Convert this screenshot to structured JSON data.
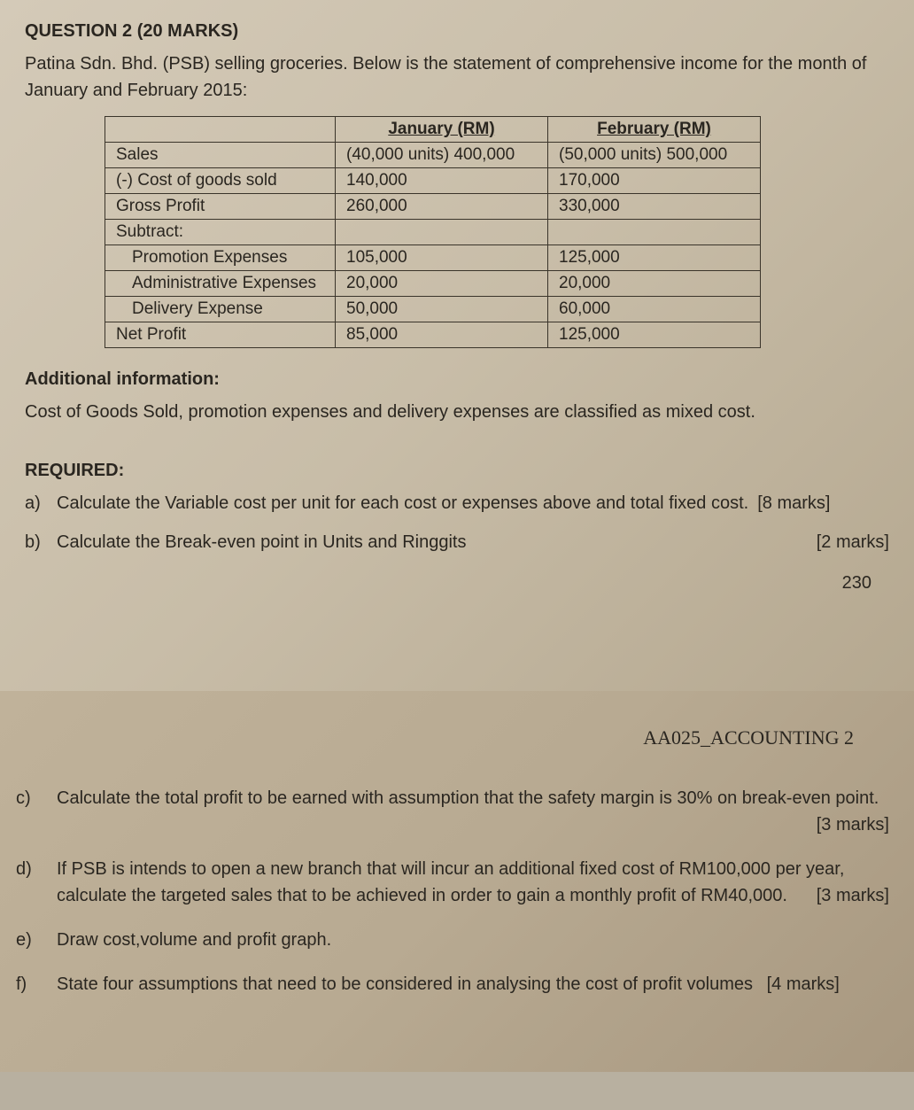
{
  "question_title": "QUESTION 2 (20 MARKS)",
  "intro": "Patina Sdn. Bhd. (PSB) selling groceries.  Below is the statement of comprehensive income for the month of January and February 2015:",
  "table": {
    "columns": [
      "",
      "January (RM)",
      "February (RM)"
    ],
    "rows": [
      {
        "label": "Sales",
        "jan": "(40,000 units) 400,000",
        "feb": "(50,000 units) 500,000",
        "indent": false
      },
      {
        "label": "(-) Cost of goods sold",
        "jan": "140,000",
        "feb": "170,000",
        "indent": false
      },
      {
        "label": "Gross Profit",
        "jan": "260,000",
        "feb": "330,000",
        "indent": false
      },
      {
        "label": "Subtract:",
        "jan": "",
        "feb": "",
        "indent": false
      },
      {
        "label": "Promotion Expenses",
        "jan": "105,000",
        "feb": "125,000",
        "indent": true
      },
      {
        "label": "Administrative Expenses",
        "jan": "20,000",
        "feb": "20,000",
        "indent": true
      },
      {
        "label": "Delivery Expense",
        "jan": "50,000",
        "feb": "60,000",
        "indent": true
      },
      {
        "label": "Net Profit",
        "jan": "85,000",
        "feb": "125,000",
        "indent": false
      }
    ],
    "border_color": "#3a342a",
    "font_size": 19
  },
  "additional_title": "Additional information:",
  "additional_text": "Cost of Goods Sold, promotion expenses and delivery expenses are classified as mixed cost.",
  "required_title": "REQUIRED:",
  "req_a": {
    "letter": "a)",
    "text": "Calculate the Variable cost per unit for each cost or expenses above and total fixed cost.",
    "marks": "[8 marks]"
  },
  "req_b": {
    "letter": "b)",
    "text": "Calculate the Break-even point in Units and Ringgits",
    "marks": "[2 marks]"
  },
  "page_number": "230",
  "course_code": "AA025_ACCOUNTING 2",
  "req_c": {
    "letter": "c)",
    "text": "Calculate the total profit to be earned with assumption that the safety margin is 30% on break-even point.",
    "marks": "[3 marks]"
  },
  "req_d": {
    "letter": "d)",
    "text": "If PSB is intends to open a new branch that will incur an additional fixed cost of RM100,000 per year, calculate the targeted sales that to be achieved in order to gain a monthly profit of RM40,000.",
    "marks": "[3 marks]"
  },
  "req_e": {
    "letter": "e)",
    "text": "Draw cost,volume and profit graph.",
    "marks": ""
  },
  "req_f": {
    "letter": "f)",
    "text": "State four assumptions that need to be considered in analysing the cost of profit volumes",
    "marks": "[4 marks]"
  },
  "colors": {
    "page_bg_top": "#d4cab8",
    "page_bg_bottom": "#b8aa92",
    "text": "#2a2620"
  }
}
